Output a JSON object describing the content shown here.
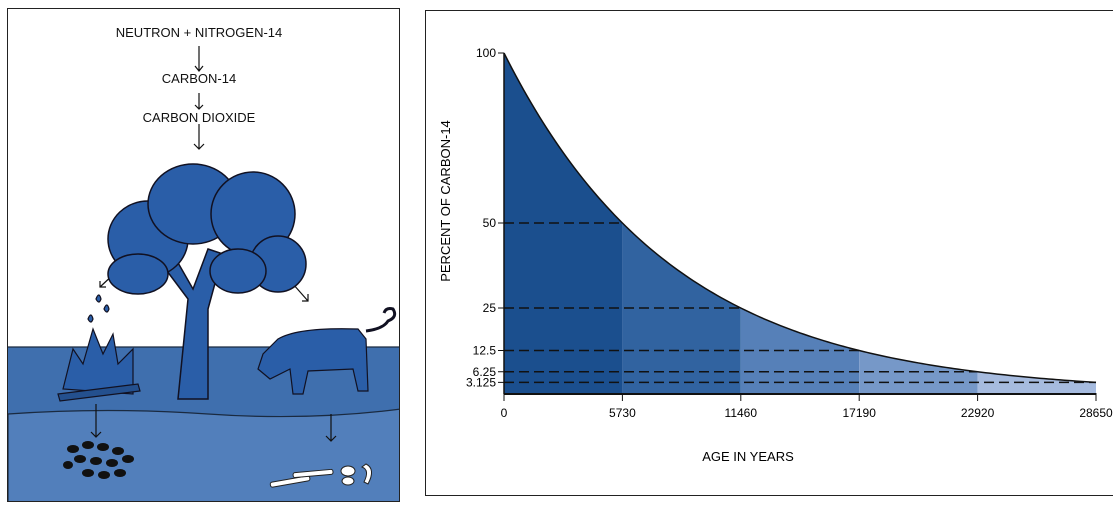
{
  "diagram": {
    "steps": [
      "NEUTRON + NITROGEN-14",
      "CARBON-14",
      "CARBON DIOXIDE"
    ],
    "icons": [
      "tree-icon",
      "fire-icon",
      "cow-icon",
      "charcoal-icon",
      "bones-icon"
    ],
    "colors": {
      "tree": "#2a5ea8",
      "ground": "#3f6fae",
      "subsoil": "#527fbb"
    }
  },
  "chart_data": {
    "type": "area",
    "title": "",
    "xlabel": "AGE IN YEARS",
    "ylabel": "PERCENT OF CARBON-14",
    "x_ticks": [
      "0",
      "5730",
      "11460",
      "17190",
      "22920",
      "28650"
    ],
    "y_ticks": [
      "100",
      "50",
      "25",
      "12.5",
      "6.25",
      "3.125"
    ],
    "x": [
      0,
      5730,
      11460,
      17190,
      22920,
      28650
    ],
    "values": [
      100,
      50,
      25,
      12.5,
      6.25,
      3.125
    ],
    "xlim": [
      0,
      28650
    ],
    "ylim": [
      0,
      100
    ],
    "half_life": 5730,
    "segment_colors": [
      "#1b4f8e",
      "#3163a0",
      "#5680b8",
      "#7698c8",
      "#a6bbdf"
    ],
    "dashed_reference_lines": true
  }
}
